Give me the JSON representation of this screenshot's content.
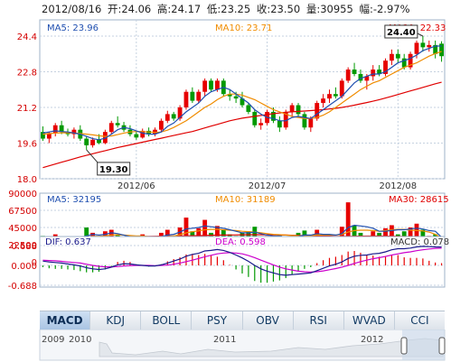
{
  "header": {
    "date": "2012/08/16",
    "open_label": "开",
    "open": "24.06",
    "high_label": "高",
    "high": "24.17",
    "low_label": "低",
    "low": "23.25",
    "close_label": "收",
    "close": "23.50",
    "volume_label": "量",
    "volume": "30955",
    "change_label": "幅",
    "change": "-2.97%"
  },
  "colors": {
    "up": "#e60000",
    "down": "#009900",
    "ma5": "#1f4fb0",
    "ma10": "#f08c00",
    "ma30": "#e00000",
    "dif": "#1a1a8c",
    "dea": "#cc00cc",
    "grid": "#c6d2e0",
    "axis_text": "#d40000"
  },
  "chart_data": [
    {
      "type": "candlestick",
      "name": "price",
      "ylim": [
        18.0,
        24.4
      ],
      "yticks": [
        "24.4",
        "22.8",
        "21.2",
        "19.6",
        "18.0"
      ],
      "xticks": [
        "2012/06",
        "2012/07",
        "2012/08"
      ],
      "legend": [
        {
          "label": "MA5: 23.96",
          "color": "#1f4fb0"
        },
        {
          "label": "MA10: 23.71",
          "color": "#f08c00"
        },
        {
          "label": "MA30: 22.33",
          "color": "#e00000"
        }
      ],
      "annotations": [
        {
          "text": "24.40",
          "value": 24.4
        },
        {
          "text": "19.30",
          "value": 19.3
        }
      ],
      "ohlc": [
        [
          20.1,
          20.35,
          19.7,
          19.8
        ],
        [
          19.8,
          20.1,
          19.6,
          20.05
        ],
        [
          20.05,
          20.5,
          19.9,
          20.4
        ],
        [
          20.4,
          20.6,
          20.0,
          20.1
        ],
        [
          20.1,
          20.25,
          19.9,
          20.0
        ],
        [
          20.0,
          20.3,
          19.8,
          20.2
        ],
        [
          20.2,
          20.4,
          19.7,
          19.8
        ],
        [
          19.8,
          19.9,
          19.3,
          19.5
        ],
        [
          19.5,
          19.85,
          19.4,
          19.75
        ],
        [
          19.75,
          20.0,
          19.55,
          19.6
        ],
        [
          19.6,
          20.2,
          19.55,
          20.1
        ],
        [
          20.1,
          20.6,
          20.0,
          20.5
        ],
        [
          20.5,
          20.8,
          20.3,
          20.4
        ],
        [
          20.4,
          20.55,
          20.1,
          20.2
        ],
        [
          20.2,
          20.4,
          19.9,
          20.0
        ],
        [
          20.0,
          20.1,
          19.75,
          19.85
        ],
        [
          19.85,
          20.25,
          19.8,
          20.15
        ],
        [
          20.15,
          20.3,
          19.9,
          20.0
        ],
        [
          20.0,
          20.3,
          19.9,
          20.2
        ],
        [
          20.2,
          20.7,
          20.1,
          20.6
        ],
        [
          20.6,
          21.05,
          20.5,
          20.9
        ],
        [
          20.9,
          21.0,
          20.6,
          20.7
        ],
        [
          20.7,
          21.3,
          20.6,
          21.2
        ],
        [
          21.2,
          22.0,
          21.1,
          21.9
        ],
        [
          21.9,
          22.1,
          21.4,
          21.5
        ],
        [
          21.5,
          22.0,
          21.4,
          21.9
        ],
        [
          21.9,
          22.5,
          21.7,
          22.4
        ],
        [
          22.4,
          22.5,
          21.9,
          22.0
        ],
        [
          22.0,
          22.5,
          21.9,
          22.4
        ],
        [
          22.4,
          22.5,
          21.7,
          21.8
        ],
        [
          21.8,
          22.0,
          21.5,
          21.7
        ],
        [
          21.7,
          21.9,
          21.4,
          21.6
        ],
        [
          21.6,
          21.9,
          21.2,
          21.3
        ],
        [
          21.3,
          21.4,
          20.9,
          21.0
        ],
        [
          21.0,
          21.1,
          20.3,
          20.4
        ],
        [
          20.4,
          20.7,
          20.2,
          20.5
        ],
        [
          20.5,
          21.1,
          20.4,
          21.0
        ],
        [
          21.0,
          21.2,
          20.5,
          20.6
        ],
        [
          20.6,
          20.8,
          20.1,
          20.3
        ],
        [
          20.3,
          21.1,
          20.2,
          21.0
        ],
        [
          21.0,
          21.4,
          20.8,
          21.3
        ],
        [
          21.3,
          21.4,
          20.8,
          20.9
        ],
        [
          20.9,
          21.0,
          20.2,
          20.3
        ],
        [
          20.3,
          20.8,
          20.1,
          20.7
        ],
        [
          20.7,
          21.5,
          20.6,
          21.4
        ],
        [
          21.4,
          21.8,
          21.2,
          21.6
        ],
        [
          21.6,
          22.0,
          21.4,
          21.8
        ],
        [
          21.8,
          22.1,
          21.6,
          21.7
        ],
        [
          21.7,
          22.5,
          21.6,
          22.4
        ],
        [
          22.4,
          23.0,
          22.3,
          22.9
        ],
        [
          22.9,
          23.2,
          22.6,
          22.7
        ],
        [
          22.7,
          22.9,
          22.3,
          22.4
        ],
        [
          22.4,
          22.7,
          22.0,
          22.6
        ],
        [
          22.6,
          23.1,
          22.4,
          22.9
        ],
        [
          22.9,
          23.1,
          22.6,
          22.7
        ],
        [
          22.7,
          23.4,
          22.6,
          23.3
        ],
        [
          23.3,
          23.8,
          23.1,
          23.6
        ],
        [
          23.6,
          23.8,
          23.2,
          23.4
        ],
        [
          23.4,
          23.6,
          22.9,
          23.0
        ],
        [
          23.0,
          23.7,
          22.9,
          23.6
        ],
        [
          23.6,
          24.2,
          23.4,
          24.1
        ],
        [
          24.1,
          24.4,
          23.7,
          23.9
        ],
        [
          23.9,
          24.2,
          23.7,
          24.0
        ],
        [
          24.0,
          24.2,
          23.4,
          23.6
        ],
        [
          24.06,
          24.17,
          23.25,
          23.5
        ]
      ],
      "ma5": [
        20.05,
        20.1,
        20.15,
        20.12,
        20.1,
        20.05,
        20.0,
        19.9,
        19.8,
        19.75,
        19.82,
        20.0,
        20.2,
        20.3,
        20.25,
        20.15,
        20.05,
        20.0,
        20.0,
        20.1,
        20.35,
        20.5,
        20.75,
        21.0,
        21.2,
        21.4,
        21.7,
        21.9,
        22.0,
        22.1,
        22.0,
        21.8,
        21.6,
        21.4,
        21.1,
        20.9,
        20.75,
        20.7,
        20.6,
        20.6,
        20.75,
        20.8,
        20.75,
        20.7,
        20.9,
        21.1,
        21.3,
        21.5,
        21.7,
        22.0,
        22.3,
        22.5,
        22.6,
        22.7,
        22.7,
        22.8,
        23.0,
        23.2,
        23.3,
        23.4,
        23.55,
        23.75,
        23.85,
        23.95,
        23.96
      ],
      "ma10": [
        20.0,
        20.02,
        20.05,
        20.06,
        20.06,
        20.05,
        20.03,
        20.0,
        19.97,
        19.93,
        19.9,
        19.92,
        19.98,
        20.05,
        20.1,
        20.12,
        20.12,
        20.1,
        20.08,
        20.1,
        20.18,
        20.3,
        20.45,
        20.6,
        20.8,
        21.0,
        21.2,
        21.35,
        21.55,
        21.7,
        21.8,
        21.8,
        21.75,
        21.65,
        21.55,
        21.4,
        21.25,
        21.1,
        21.0,
        20.9,
        20.8,
        20.75,
        20.7,
        20.7,
        20.75,
        20.85,
        21.0,
        21.2,
        21.4,
        21.6,
        21.8,
        22.0,
        22.15,
        22.3,
        22.4,
        22.55,
        22.7,
        22.85,
        23.0,
        23.1,
        23.2,
        23.35,
        23.5,
        23.62,
        23.71
      ],
      "ma30": [
        18.5,
        18.58,
        18.66,
        18.74,
        18.82,
        18.9,
        18.98,
        19.05,
        19.12,
        19.19,
        19.26,
        19.33,
        19.4,
        19.46,
        19.52,
        19.58,
        19.64,
        19.7,
        19.76,
        19.82,
        19.88,
        19.94,
        20.0,
        20.06,
        20.12,
        20.2,
        20.28,
        20.36,
        20.44,
        20.52,
        20.6,
        20.66,
        20.72,
        20.76,
        20.8,
        20.84,
        20.88,
        20.92,
        20.95,
        20.98,
        21.0,
        21.02,
        21.04,
        21.06,
        21.08,
        21.1,
        21.13,
        21.16,
        21.2,
        21.25,
        21.3,
        21.36,
        21.42,
        21.48,
        21.55,
        21.62,
        21.7,
        21.78,
        21.86,
        21.94,
        22.02,
        22.1,
        22.18,
        22.26,
        22.33
      ]
    },
    {
      "type": "bar",
      "name": "volume",
      "ylim": [
        0,
        90000
      ],
      "yticks": [
        "90000",
        "67500",
        "45000",
        "22500",
        "0"
      ],
      "legend": [
        {
          "label": "MA5: 32195",
          "color": "#1f4fb0"
        },
        {
          "label": "MA10: 31189",
          "color": "#f08c00"
        },
        {
          "label": "MA30: 28615",
          "color": "#e00000"
        }
      ],
      "values": [
        34000,
        28000,
        36000,
        30000,
        26000,
        29000,
        31000,
        45000,
        38000,
        32000,
        40000,
        42000,
        35000,
        30000,
        28000,
        27000,
        36000,
        33000,
        30000,
        38000,
        42000,
        30000,
        45000,
        58000,
        40000,
        44000,
        55000,
        38000,
        47000,
        42000,
        36000,
        34000,
        38000,
        40000,
        46000,
        28000,
        34000,
        30000,
        36000,
        30000,
        32000,
        38000,
        41000,
        30000,
        42000,
        36000,
        33000,
        30000,
        46000,
        78000,
        48000,
        38000,
        34000,
        40000,
        38000,
        44000,
        48000,
        36000,
        40000,
        45000,
        50000,
        42000,
        34000,
        36000,
        30955
      ],
      "direction": [
        -1,
        1,
        1,
        -1,
        -1,
        1,
        -1,
        -1,
        1,
        -1,
        1,
        1,
        -1,
        -1,
        -1,
        -1,
        1,
        -1,
        1,
        1,
        1,
        -1,
        1,
        1,
        -1,
        1,
        1,
        -1,
        1,
        -1,
        -1,
        -1,
        -1,
        -1,
        -1,
        1,
        1,
        -1,
        -1,
        1,
        1,
        -1,
        -1,
        1,
        1,
        1,
        1,
        -1,
        1,
        1,
        -1,
        -1,
        1,
        1,
        -1,
        1,
        1,
        -1,
        -1,
        1,
        1,
        -1,
        1,
        -1,
        -1
      ],
      "ma5": [
        32000,
        31500,
        31000,
        31500,
        31000,
        30000,
        32000,
        34000,
        36000,
        35000,
        36000,
        38000,
        37000,
        35000,
        33000,
        32000,
        32000,
        31000,
        31000,
        33000,
        35000,
        36000,
        39000,
        43000,
        44000,
        45000,
        47000,
        46000,
        45000,
        44000,
        42000,
        40000,
        38000,
        38000,
        39000,
        37000,
        35000,
        34000,
        34000,
        32000,
        32000,
        33000,
        35000,
        35000,
        37000,
        36000,
        36000,
        35000,
        37000,
        45000,
        48000,
        47000,
        46000,
        44000,
        40000,
        40000,
        41000,
        42000,
        42000,
        43000,
        44000,
        43000,
        41000,
        40000,
        32195
      ],
      "ma10": [
        31000,
        31000,
        31000,
        31000,
        31000,
        31000,
        31500,
        32500,
        33500,
        33500,
        34000,
        35000,
        35500,
        35000,
        34500,
        34000,
        34000,
        33000,
        32500,
        32500,
        33000,
        34000,
        35500,
        38000,
        39500,
        40500,
        42000,
        42500,
        42500,
        42000,
        41500,
        41000,
        40000,
        39500,
        39000,
        38000,
        37000,
        36000,
        35500,
        35000,
        34500,
        34000,
        34000,
        34500,
        35000,
        35000,
        35000,
        35000,
        36000,
        39000,
        41000,
        41500,
        41500,
        41000,
        40000,
        41000,
        42000,
        42500,
        42500,
        41500,
        41000,
        40500,
        39000,
        36000,
        31189
      ],
      "ma30": [
        30000,
        30200,
        30400,
        30600,
        30800,
        31000,
        31200,
        31400,
        31600,
        31800,
        32000,
        32200,
        32400,
        32600,
        32800,
        33000,
        33200,
        33400,
        33500,
        33600,
        33700,
        33800,
        33900,
        34000,
        34200,
        34400,
        34600,
        34800,
        35000,
        35100,
        35200,
        35300,
        35400,
        35500,
        35500,
        35500,
        35400,
        35300,
        35200,
        35000,
        34800,
        34600,
        34400,
        34200,
        34000,
        33800,
        33600,
        33400,
        33300,
        33400,
        33500,
        33600,
        33700,
        33800,
        33800,
        33700,
        33600,
        33400,
        33200,
        33000,
        32500,
        31500,
        30500,
        29500,
        28615
      ]
    },
    {
      "type": "macd",
      "name": "macd",
      "ylim": [
        -0.688,
        0.688
      ],
      "yticks": [
        "0.688",
        "0.000",
        "-0.688"
      ],
      "legend": [
        {
          "label": "DIF: 0.637",
          "color": "#1a1a8c"
        },
        {
          "label": "DEA: 0.598",
          "color": "#cc00cc"
        },
        {
          "label": "MACD: 0.078",
          "color": "#333333"
        }
      ],
      "dif": [
        0.15,
        0.12,
        0.1,
        0.08,
        0.05,
        0.02,
        -0.02,
        -0.08,
        -0.12,
        -0.14,
        -0.12,
        -0.06,
        0.02,
        0.06,
        0.05,
        0.02,
        0.0,
        -0.02,
        -0.02,
        0.02,
        0.08,
        0.15,
        0.22,
        0.32,
        0.38,
        0.42,
        0.5,
        0.52,
        0.55,
        0.52,
        0.45,
        0.36,
        0.26,
        0.14,
        0.0,
        -0.12,
        -0.2,
        -0.26,
        -0.32,
        -0.34,
        -0.32,
        -0.3,
        -0.28,
        -0.26,
        -0.18,
        -0.1,
        -0.02,
        0.04,
        0.12,
        0.24,
        0.32,
        0.35,
        0.36,
        0.4,
        0.42,
        0.47,
        0.54,
        0.58,
        0.58,
        0.6,
        0.64,
        0.66,
        0.65,
        0.64,
        0.637
      ],
      "dea": [
        0.18,
        0.17,
        0.16,
        0.14,
        0.12,
        0.1,
        0.08,
        0.04,
        0.0,
        -0.03,
        -0.05,
        -0.05,
        -0.04,
        -0.02,
        -0.01,
        0.0,
        0.0,
        0.0,
        -0.01,
        0.0,
        0.01,
        0.04,
        0.08,
        0.13,
        0.18,
        0.24,
        0.3,
        0.35,
        0.4,
        0.43,
        0.44,
        0.43,
        0.4,
        0.34,
        0.27,
        0.18,
        0.1,
        0.02,
        -0.06,
        -0.12,
        -0.16,
        -0.2,
        -0.22,
        -0.23,
        -0.22,
        -0.19,
        -0.15,
        -0.11,
        -0.06,
        0.0,
        0.07,
        0.13,
        0.18,
        0.23,
        0.27,
        0.31,
        0.36,
        0.4,
        0.44,
        0.47,
        0.51,
        0.54,
        0.57,
        0.59,
        0.598
      ],
      "macd": [
        -0.06,
        -0.1,
        -0.12,
        -0.12,
        -0.14,
        -0.16,
        -0.2,
        -0.24,
        -0.24,
        -0.22,
        -0.14,
        -0.02,
        0.12,
        0.16,
        0.12,
        0.04,
        0.0,
        -0.04,
        -0.02,
        0.04,
        0.14,
        0.22,
        0.28,
        0.38,
        0.4,
        0.36,
        0.4,
        0.34,
        0.3,
        0.18,
        0.02,
        -0.14,
        -0.28,
        -0.4,
        -0.54,
        -0.6,
        -0.6,
        -0.56,
        -0.52,
        -0.44,
        -0.32,
        -0.2,
        -0.12,
        -0.06,
        0.08,
        0.18,
        0.26,
        0.3,
        0.36,
        0.48,
        0.5,
        0.44,
        0.36,
        0.34,
        0.3,
        0.32,
        0.36,
        0.36,
        0.28,
        0.26,
        0.26,
        0.24,
        0.16,
        0.1,
        0.078
      ]
    }
  ],
  "tabs": [
    "MACD",
    "KDJ",
    "BOLL",
    "PSY",
    "OBV",
    "RSI",
    "WVAD",
    "CCI"
  ],
  "active_tab": "MACD",
  "navigator": {
    "labels": [
      "2009",
      "2010",
      "2011",
      "2012"
    ]
  }
}
